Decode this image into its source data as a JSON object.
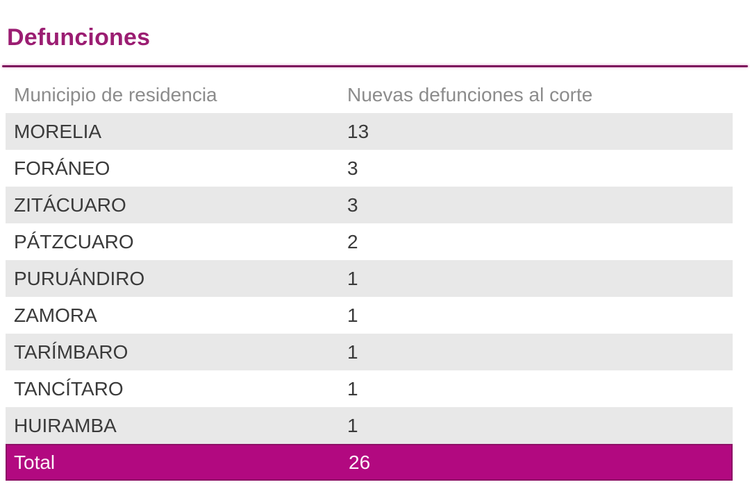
{
  "page": {
    "title": "Defunciones"
  },
  "colors": {
    "title": "#9B1D72",
    "divider": "#7D165C",
    "header_text": "#8C8C8C",
    "row_text": "#3A3A3A",
    "stripe_bg": "#E8E8E8",
    "total_bg": "#B20980",
    "total_border": "#8D0F65",
    "total_text": "#FFFFFF"
  },
  "table": {
    "columns": [
      "Municipio de residencia",
      "Nuevas defunciones al corte"
    ],
    "rows": [
      {
        "municipio": "MORELIA",
        "defunciones": "13"
      },
      {
        "municipio": "FORÁNEO",
        "defunciones": "3"
      },
      {
        "municipio": "ZITÁCUARO",
        "defunciones": "3"
      },
      {
        "municipio": "PÁTZCUARO",
        "defunciones": "2"
      },
      {
        "municipio": "PURUÁNDIRO",
        "defunciones": "1"
      },
      {
        "municipio": "ZAMORA",
        "defunciones": "1"
      },
      {
        "municipio": "TARÍMBARO",
        "defunciones": "1"
      },
      {
        "municipio": "TANCÍTARO",
        "defunciones": "1"
      },
      {
        "municipio": "HUIRAMBA",
        "defunciones": "1"
      }
    ],
    "total": {
      "label": "Total",
      "value": "26"
    }
  },
  "chart_data": {
    "type": "table",
    "title": "Defunciones",
    "columns": [
      "Municipio de residencia",
      "Nuevas defunciones al corte"
    ],
    "rows": [
      [
        "MORELIA",
        13
      ],
      [
        "FORÁNEO",
        3
      ],
      [
        "ZITÁCUARO",
        3
      ],
      [
        "PÁTZCUARO",
        2
      ],
      [
        "PURUÁNDIRO",
        1
      ],
      [
        "ZAMORA",
        1
      ],
      [
        "TARÍMBARO",
        1
      ],
      [
        "TANCÍTARO",
        1
      ],
      [
        "HUIRAMBA",
        1
      ]
    ],
    "total_row": [
      "Total",
      26
    ]
  }
}
